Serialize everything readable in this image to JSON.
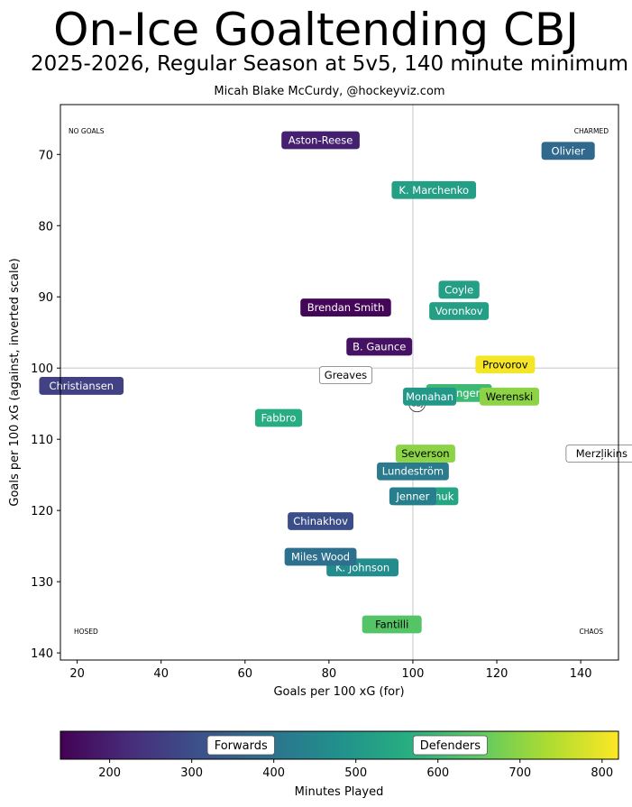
{
  "chart_data": {
    "type": "scatter",
    "title": "On-Ice Goaltending CBJ",
    "subtitle": "2025-2026, Regular Season at 5v5, 140 minute minimum",
    "credit": "Micah Blake McCurdy, @hockeyviz.com",
    "xlabel": "Goals per 100 xG (for)",
    "ylabel": "Goals per 100 xG (against, inverted scale)",
    "xlim": [
      16,
      149
    ],
    "ylim": [
      141,
      63
    ],
    "xticks": [
      20,
      40,
      60,
      80,
      100,
      120,
      140
    ],
    "yticks": [
      70,
      80,
      90,
      100,
      110,
      120,
      130,
      140
    ],
    "grid": false,
    "reference_lines": {
      "x": 100,
      "y": 100
    },
    "quadrant_labels": {
      "top_left": "NO GOALS",
      "top_right": "CHARMED",
      "bottom_left": "HOSED",
      "bottom_right": "CHAOS"
    },
    "team_marker": {
      "label": "CBJ",
      "x": 101,
      "y": 105
    },
    "colorbar": {
      "label": "Minutes Played",
      "min": 140,
      "max": 820,
      "ticks": [
        200,
        300,
        400,
        500,
        600,
        700,
        800
      ],
      "colormap": "viridis",
      "position_annotations": [
        {
          "label": "Forwards",
          "value": 360
        },
        {
          "label": "Defenders",
          "value": 615
        }
      ]
    },
    "points": [
      {
        "name": "Merzļikins",
        "x": 145,
        "y": 112,
        "minutes": null
      },
      {
        "name": "Fantilli",
        "x": 95,
        "y": 136,
        "minutes": 635
      },
      {
        "name": "K. Johnson",
        "x": 88,
        "y": 128,
        "minutes": 470
      },
      {
        "name": "Miles Wood",
        "x": 78,
        "y": 126.5,
        "minutes": 390
      },
      {
        "name": "Chinakhov",
        "x": 78,
        "y": 121.5,
        "minutes": 300
      },
      {
        "name": "Mateychuk",
        "x": 103,
        "y": 118,
        "minutes": 540
      },
      {
        "name": "Jenner",
        "x": 100,
        "y": 118,
        "minutes": 430
      },
      {
        "name": "Lundeström",
        "x": 100,
        "y": 114.5,
        "minutes": 420
      },
      {
        "name": "Severson",
        "x": 103,
        "y": 112,
        "minutes": 700
      },
      {
        "name": "Fabbro",
        "x": 68,
        "y": 107,
        "minutes": 560
      },
      {
        "name": "Christiansen",
        "x": 21,
        "y": 102.5,
        "minutes": 270
      },
      {
        "name": "Greaves",
        "x": 84,
        "y": 101,
        "minutes": null
      },
      {
        "name": "Sillinger",
        "x": 111,
        "y": 103.5,
        "minutes": 600
      },
      {
        "name": "Monahan",
        "x": 104,
        "y": 104,
        "minutes": 500
      },
      {
        "name": "Werenski",
        "x": 123,
        "y": 104,
        "minutes": 700
      },
      {
        "name": "Provorov",
        "x": 122,
        "y": 99.5,
        "minutes": 810
      },
      {
        "name": "B. Gaunce",
        "x": 92,
        "y": 97,
        "minutes": 170
      },
      {
        "name": "Brendan Smith",
        "x": 84,
        "y": 91.5,
        "minutes": 150
      },
      {
        "name": "Voronkov",
        "x": 111,
        "y": 92,
        "minutes": 520
      },
      {
        "name": "Coyle",
        "x": 111,
        "y": 89,
        "minutes": 520
      },
      {
        "name": "K. Marchenko",
        "x": 105,
        "y": 75,
        "minutes": 520
      },
      {
        "name": "Aston-Reese",
        "x": 78,
        "y": 68,
        "minutes": 200
      },
      {
        "name": "Olivier",
        "x": 137,
        "y": 69.5,
        "minutes": 370
      }
    ]
  }
}
